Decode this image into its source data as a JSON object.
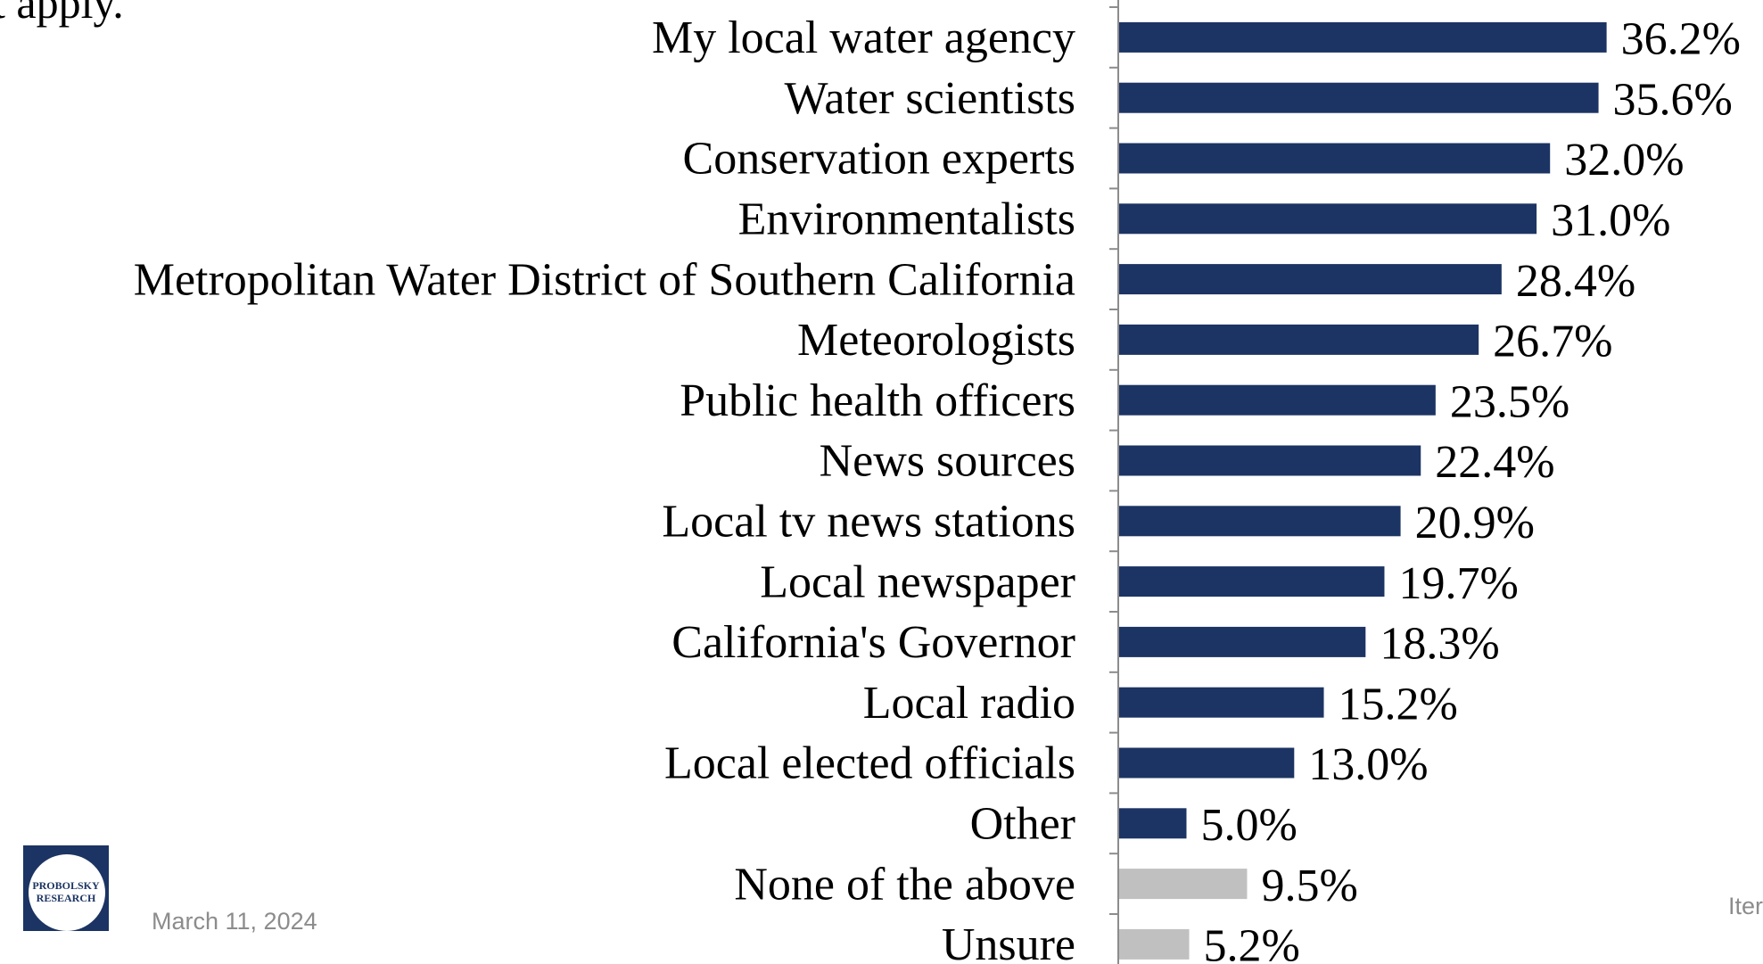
{
  "question_fragment": "t apply.",
  "footer": {
    "date": "March 11, 2024",
    "right_fragment": "Iter"
  },
  "logo": {
    "line1": "PROBOLSKY",
    "line2": "RESEARCH"
  },
  "colors": {
    "primary_bar": "#1c3463",
    "secondary_bar": "#c0c0c0",
    "axis": "#8c8c8c",
    "footer_text": "#8c8c8c"
  },
  "chart_data": {
    "type": "bar",
    "orientation": "horizontal",
    "categories": [
      "My local water agency",
      "Water scientists",
      "Conservation experts",
      "Environmentalists",
      "Metropolitan Water District of Southern California",
      "Meteorologists",
      "Public health officers",
      "News sources",
      "Local tv news stations",
      "Local newspaper",
      "California's Governor",
      "Local radio",
      "Local elected officials",
      "Other",
      "None of the above",
      "Unsure"
    ],
    "values": [
      36.2,
      35.6,
      32.0,
      31.0,
      28.4,
      26.7,
      23.5,
      22.4,
      20.9,
      19.7,
      18.3,
      15.2,
      13.0,
      5.0,
      9.5,
      5.2
    ],
    "data_labels": [
      "36.2%",
      "35.6%",
      "32.0%",
      "31.0%",
      "28.4%",
      "26.7%",
      "23.5%",
      "22.4%",
      "20.9%",
      "19.7%",
      "18.3%",
      "15.2%",
      "13.0%",
      "5.0%",
      "9.5%",
      "5.2%"
    ],
    "bar_color_group": [
      "primary",
      "primary",
      "primary",
      "primary",
      "primary",
      "primary",
      "primary",
      "primary",
      "primary",
      "primary",
      "primary",
      "primary",
      "primary",
      "primary",
      "secondary",
      "secondary"
    ],
    "xlim": [
      0,
      40
    ],
    "title": "",
    "xlabel": "",
    "ylabel": "",
    "grid": false,
    "legend": "none"
  }
}
